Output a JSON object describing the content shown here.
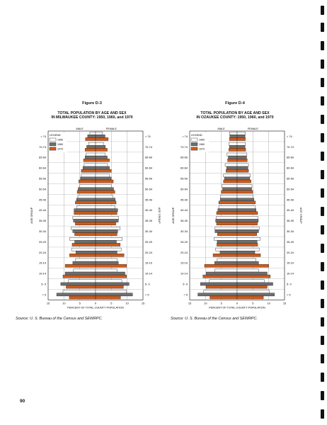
{
  "page_number": "90",
  "colors": {
    "y1950": "#ffffff",
    "y1960": "#6e6e6e",
    "y1970": "#cf5a19",
    "stroke": "#222222"
  },
  "chart_data": [
    {
      "type": "bar",
      "subtype": "population-pyramid",
      "figure_label": "Figure D-3",
      "title_line1": "TOTAL POPULATION BY AGE AND SEX",
      "title_line2": "IN MILWAUKEE COUNTY:  1950, 1960, and 1970",
      "male_label": "MALE",
      "female_label": "FEMALE",
      "legend_title": "LEGEND",
      "legend_placement": "top-left",
      "legend": [
        "1950",
        "1960",
        "1970"
      ],
      "ylabel": "AGE GROUP",
      "xlabel": "PERCENT OF TOTAL COUNTY POPULATION",
      "xlim": [
        -15,
        15
      ],
      "x_ticks": [
        "15",
        "10",
        "5",
        "0",
        "5",
        "10",
        "15"
      ],
      "grid": true,
      "categories": [
        "> 74",
        "70-74",
        "65-69",
        "60-64",
        "55-59",
        "50-54",
        "45-49",
        "40-44",
        "35-39",
        "30-34",
        "25-29",
        "20-24",
        "15-19",
        "10-14",
        "5- 9",
        "< 5"
      ],
      "series": [
        {
          "name": "1950",
          "male": [
            1.8,
            2.2,
            3.0,
            3.6,
            4.5,
            5.0,
            5.6,
            6.0,
            7.2,
            7.7,
            8.2,
            7.6,
            6.3,
            7.0,
            8.6,
            10.3
          ],
          "female": [
            2.2,
            2.5,
            3.1,
            3.8,
            4.4,
            5.0,
            5.5,
            6.2,
            7.3,
            7.8,
            8.4,
            8.1,
            6.8,
            6.8,
            8.3,
            9.8
          ]
        },
        {
          "name": "1960",
          "male": [
            2.5,
            2.8,
            3.3,
            4.0,
            4.8,
            5.5,
            6.0,
            6.8,
            7.0,
            7.2,
            6.6,
            6.2,
            7.2,
            9.6,
            11.0,
            12.3
          ],
          "female": [
            3.0,
            3.1,
            3.7,
            4.4,
            5.0,
            5.7,
            6.2,
            7.0,
            7.2,
            7.0,
            6.6,
            6.8,
            7.2,
            9.3,
            10.6,
            11.7
          ]
        },
        {
          "name": "1970",
          "male": [
            3.2,
            3.3,
            3.8,
            4.5,
            5.3,
            5.8,
            6.4,
            6.8,
            6.4,
            6.6,
            7.4,
            8.2,
            9.6,
            10.3,
            9.3,
            8.3
          ],
          "female": [
            4.0,
            3.7,
            4.4,
            5.0,
            5.6,
            6.1,
            6.5,
            6.8,
            6.4,
            6.8,
            7.8,
            9.0,
            9.8,
            9.8,
            8.8,
            7.9
          ]
        }
      ],
      "source": "Source:  U. S. Bureau of the Census and SEWRPC."
    },
    {
      "type": "bar",
      "subtype": "population-pyramid",
      "figure_label": "Figure D-4",
      "title_line1": "TOTAL POPULATION BY AGE AND SEX",
      "title_line2": "IN OZAUKEE COUNTY:  1950, 1960, and 1970",
      "male_label": "MALE",
      "female_label": "FEMALE",
      "legend_title": "LEGEND",
      "legend_placement": "top-left",
      "legend": [
        "1950",
        "1960",
        "1970"
      ],
      "ylabel": "AGE GROUP",
      "xlabel": "PERCENT OF TOTAL COUNTY POPULATION",
      "xlim": [
        -15,
        15
      ],
      "x_ticks": [
        "15",
        "10",
        "5",
        "0",
        "5",
        "10",
        "15"
      ],
      "grid": true,
      "categories": [
        "> 74",
        "70-74",
        "65-69",
        "60-64",
        "55-59",
        "50-54",
        "45-49",
        "40-44",
        "35-39",
        "30-34",
        "25-29",
        "20-24",
        "15-19",
        "10-14",
        "5- 9",
        "< 5"
      ],
      "series": [
        {
          "name": "1950",
          "male": [
            2.4,
            2.6,
            3.2,
            3.8,
            4.3,
            4.8,
            5.3,
            5.8,
            6.6,
            7.0,
            7.3,
            6.8,
            6.3,
            7.0,
            8.8,
            10.6
          ],
          "female": [
            2.6,
            2.6,
            3.1,
            3.6,
            4.2,
            4.7,
            5.1,
            5.7,
            6.6,
            7.0,
            7.3,
            7.0,
            6.0,
            6.8,
            8.6,
            10.2
          ]
        },
        {
          "name": "1960",
          "male": [
            2.3,
            2.4,
            2.8,
            3.3,
            4.0,
            4.6,
            5.3,
            6.1,
            6.8,
            7.0,
            6.3,
            5.4,
            7.1,
            9.8,
            11.6,
            12.4
          ],
          "female": [
            2.5,
            2.5,
            3.0,
            3.4,
            4.0,
            4.6,
            5.3,
            6.0,
            6.7,
            6.8,
            6.3,
            5.6,
            6.8,
            9.5,
            11.3,
            11.8
          ]
        },
        {
          "name": "1970",
          "male": [
            2.4,
            2.6,
            3.0,
            3.5,
            4.3,
            5.0,
            5.8,
            6.5,
            6.5,
            6.2,
            6.4,
            7.6,
            10.3,
            10.8,
            9.8,
            8.6
          ],
          "female": [
            2.6,
            2.7,
            3.2,
            3.6,
            4.4,
            5.0,
            5.8,
            6.5,
            6.4,
            6.2,
            6.5,
            7.4,
            10.0,
            10.5,
            9.5,
            8.3
          ]
        }
      ],
      "source": "Source:  U. S. Bureau of the Census and SEWRPC."
    }
  ]
}
